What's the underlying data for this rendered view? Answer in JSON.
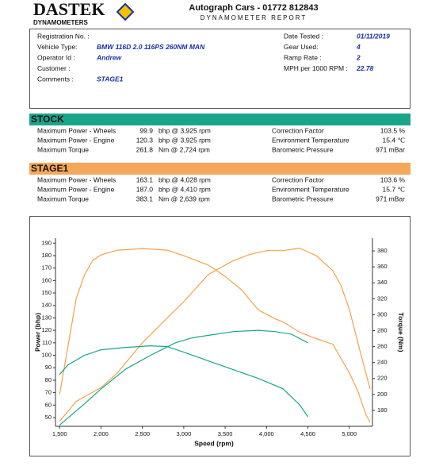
{
  "logo": {
    "name": "DASTEK",
    "tagline": "DYNAMOMETERS"
  },
  "header": {
    "title": "Autograph Cars - 01772 812843",
    "subtitle": "DYNAMOMETER REPORT"
  },
  "details": {
    "left": [
      {
        "label": "Registration No. :"
      },
      {
        "label": "Vehicle Type:",
        "value": "BMW 116D 2.0 116PS 260NM MAN"
      },
      {
        "label": "Operator Id :",
        "value": "Andrew"
      },
      {
        "label": "Customer :"
      },
      {
        "label": "Comments :",
        "value": "STAGE1"
      }
    ],
    "right": [
      {
        "label": "Date Tested :",
        "value": "01/11/2019"
      },
      {
        "label": "Gear Used:",
        "value": "4"
      },
      {
        "label": "Ramp Rate :",
        "value": "2"
      },
      {
        "label": "MPH per 1000 RPM :",
        "value": "22.78"
      }
    ]
  },
  "sections": [
    {
      "title": "STOCK",
      "color": "#1aa58a",
      "rows": [
        {
          "label": "Maximum Power - Wheels",
          "value": "99.9",
          "unit": "bhp @ 3,925 rpm",
          "label2": "Correction Factor",
          "value2": "103.5 %"
        },
        {
          "label": "Maximum Power - Engine",
          "value": "120.3",
          "unit": "bhp @ 3,925 rpm",
          "label2": "Environment Temperature",
          "value2": "15.4 ℃"
        },
        {
          "label": "Maximum Torque",
          "value": "261.8",
          "unit": "Nm @ 2,724 rpm",
          "label2": "Barometric Pressure",
          "value2": "971 mBar"
        }
      ]
    },
    {
      "title": "STAGE1",
      "color": "#f6a85a",
      "rows": [
        {
          "label": "Maximum Power - Wheels",
          "value": "163.1",
          "unit": "bhp @ 4,028 rpm",
          "label2": "Correction Factor",
          "value2": "103.6 %"
        },
        {
          "label": "Maximum Power - Engine",
          "value": "187.0",
          "unit": "bhp @ 4,410 rpm",
          "label2": "Environment Temperature",
          "value2": "15.7 ℃"
        },
        {
          "label": "Maximum Torque",
          "value": "383.1",
          "unit": "Nm @ 2,639 rpm",
          "label2": "Barometric Pressure",
          "value2": "971 mBar"
        }
      ]
    }
  ],
  "chart_data": {
    "type": "line",
    "x_label": "Speed (rpm)",
    "y_label": "Power (bhp)",
    "y2_label": "Torque (Nm)",
    "xlim": [
      1450,
      5280
    ],
    "xticks": [
      {
        "value": 1500,
        "label": "1,500"
      },
      {
        "value": 2000,
        "label": "2,000"
      },
      {
        "value": 2500,
        "label": "2,500"
      },
      {
        "value": 3000,
        "label": "3,000"
      },
      {
        "value": 3500,
        "label": "3,500"
      },
      {
        "value": 4000,
        "label": "4,000"
      },
      {
        "value": 4500,
        "label": "4,500"
      },
      {
        "value": 5000,
        "label": "5,000"
      }
    ],
    "ylim": [
      43,
      194
    ],
    "yticks": [
      50,
      60,
      70,
      80,
      90,
      100,
      110,
      120,
      130,
      140,
      150,
      160,
      170,
      180,
      190
    ],
    "y2lim": [
      160,
      396
    ],
    "y2ticks": [
      180,
      200,
      220,
      240,
      260,
      280,
      300,
      320,
      340,
      360,
      380
    ],
    "series": [
      {
        "color": "#f4a24b",
        "axis": "y",
        "x": [
          1500,
          1700,
          2000,
          2200,
          2500,
          2800,
          3000,
          3300,
          3600,
          3800,
          4000,
          4200,
          4400,
          4600,
          4800,
          4900,
          5000,
          5100,
          5200,
          5250
        ],
        "values": [
          47,
          63,
          74,
          86,
          110,
          130,
          143,
          165,
          176,
          181,
          184,
          184,
          186,
          180,
          168,
          156,
          137,
          111,
          86,
          73
        ]
      },
      {
        "color": "#f4a24b",
        "axis": "y2",
        "x": [
          1500,
          1600,
          1700,
          1800,
          1900,
          2000,
          2200,
          2500,
          2800,
          3000,
          3300,
          3500,
          3700,
          3900,
          4100,
          4200,
          4400,
          4600,
          4800,
          5000,
          5100,
          5200,
          5250
        ],
        "values": [
          200,
          260,
          320,
          350,
          368,
          375,
          381,
          383,
          381,
          374,
          362,
          348,
          331,
          306,
          295,
          291,
          278,
          270,
          263,
          227,
          205,
          175,
          165
        ]
      },
      {
        "color": "#1aa58a",
        "axis": "y",
        "x": [
          1500,
          1800,
          2000,
          2300,
          2600,
          2900,
          3100,
          3300,
          3600,
          3900,
          4100,
          4300,
          4500
        ],
        "values": [
          44,
          61,
          73,
          89,
          100,
          110,
          114,
          116,
          119,
          120,
          119,
          117,
          110
        ]
      },
      {
        "color": "#1aa58a",
        "axis": "y2",
        "x": [
          1500,
          1600,
          1800,
          2000,
          2300,
          2600,
          2800,
          3000,
          3300,
          3600,
          3900,
          4200,
          4400,
          4500
        ],
        "values": [
          225,
          237,
          249,
          256,
          259,
          261,
          260,
          253,
          242,
          231,
          220,
          207,
          187,
          172
        ]
      }
    ]
  }
}
